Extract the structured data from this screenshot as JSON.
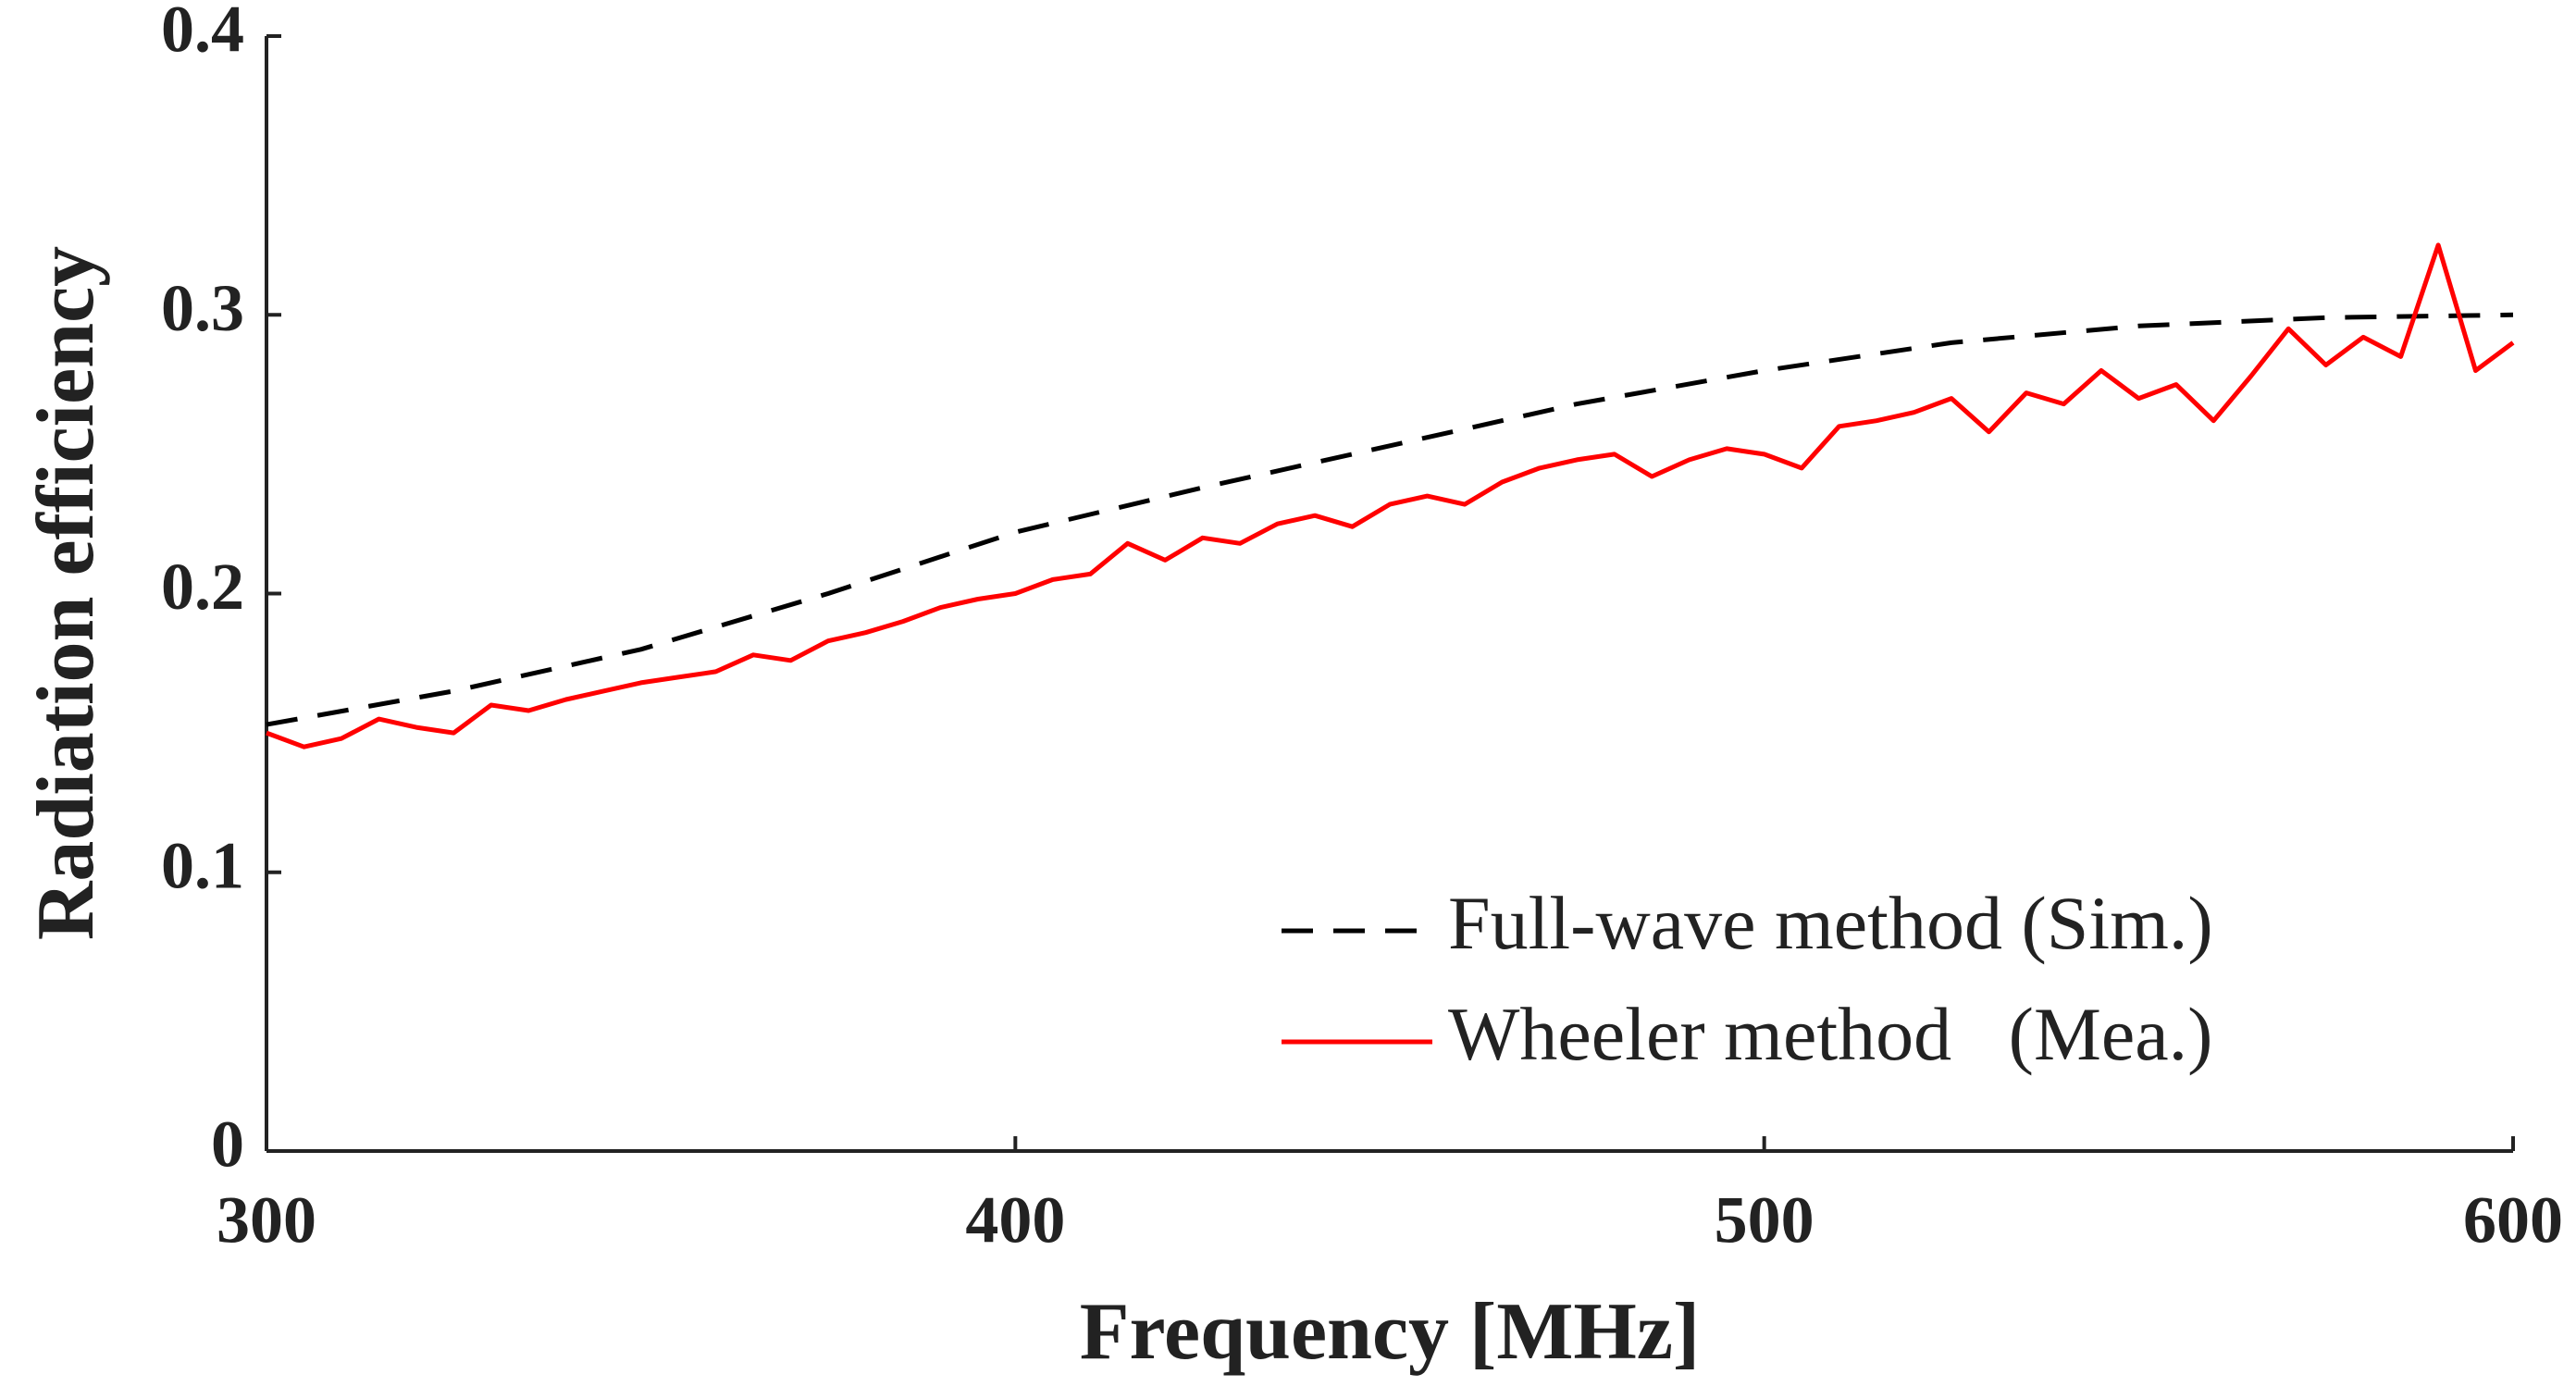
{
  "chart_data": {
    "type": "line",
    "xlabel": "Frequency [MHz]",
    "ylabel": "Radiation efficiency",
    "xlim": [
      300,
      600
    ],
    "xticks": [
      300,
      400,
      500,
      600
    ],
    "ylim": [
      0,
      0.4
    ],
    "yticks": [
      0,
      0.1,
      0.2,
      0.3,
      0.4
    ],
    "legend": "lower right",
    "series": [
      {
        "name": "Full-wave method (Sim.)",
        "color": "#000000",
        "dash": true,
        "x": [
          300,
          325,
          350,
          375,
          400,
          425,
          450,
          475,
          500,
          525,
          550,
          575,
          600
        ],
        "values": [
          0.153,
          0.165,
          0.18,
          0.2,
          0.222,
          0.238,
          0.253,
          0.268,
          0.28,
          0.29,
          0.296,
          0.299,
          0.3
        ]
      },
      {
        "name": "Wheeler method   (Mea.)",
        "color": "#ff0000",
        "dash": false,
        "x": [
          300,
          305,
          310,
          315,
          320,
          325,
          330,
          335,
          340,
          345,
          350,
          355,
          360,
          365,
          370,
          375,
          380,
          385,
          390,
          395,
          400,
          405,
          410,
          415,
          420,
          425,
          430,
          435,
          440,
          445,
          450,
          455,
          460,
          465,
          470,
          475,
          480,
          485,
          490,
          495,
          500,
          505,
          510,
          515,
          520,
          525,
          530,
          535,
          540,
          545,
          550,
          555,
          560,
          565,
          570,
          575,
          580,
          585,
          590,
          595,
          600
        ],
        "values": [
          0.15,
          0.145,
          0.148,
          0.155,
          0.152,
          0.15,
          0.16,
          0.158,
          0.162,
          0.165,
          0.168,
          0.17,
          0.172,
          0.178,
          0.176,
          0.183,
          0.186,
          0.19,
          0.195,
          0.198,
          0.2,
          0.205,
          0.207,
          0.218,
          0.212,
          0.22,
          0.218,
          0.225,
          0.228,
          0.224,
          0.232,
          0.235,
          0.232,
          0.24,
          0.245,
          0.248,
          0.25,
          0.242,
          0.248,
          0.252,
          0.25,
          0.245,
          0.26,
          0.262,
          0.265,
          0.27,
          0.258,
          0.272,
          0.268,
          0.28,
          0.27,
          0.275,
          0.262,
          0.278,
          0.295,
          0.282,
          0.292,
          0.285,
          0.325,
          0.28,
          0.29
        ]
      }
    ]
  }
}
